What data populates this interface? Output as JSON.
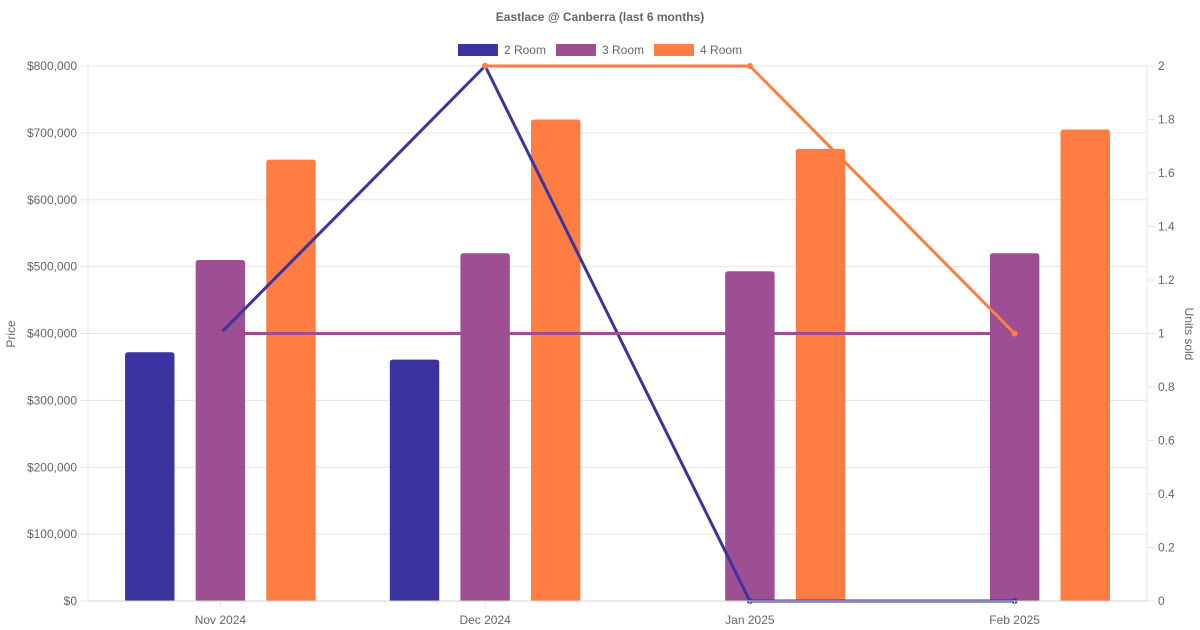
{
  "chart_data": {
    "type": "bar",
    "title": "Eastlace @ Canberra (last 6 months)",
    "categories": [
      "Nov 2024",
      "Dec 2024",
      "Jan 2025",
      "Feb 2025"
    ],
    "y_left": {
      "label": "Price",
      "min": 0,
      "max": 800000,
      "step": 100000,
      "tick_labels": [
        "$0",
        "$100,000",
        "$200,000",
        "$300,000",
        "$400,000",
        "$500,000",
        "$600,000",
        "$700,000",
        "$800,000"
      ]
    },
    "y_right": {
      "label": "Units sold",
      "min": 0,
      "max": 2,
      "step": 0.2,
      "tick_labels": [
        "0",
        "0.2",
        "0.4",
        "0.6",
        "0.8",
        "1",
        "1.2",
        "1.4",
        "1.6",
        "1.8",
        "2"
      ]
    },
    "legend_position": "top",
    "grid": true,
    "bar_series": [
      {
        "name": "2 Room",
        "color": "#3a34a0",
        "values": [
          372000,
          361000,
          null,
          null
        ]
      },
      {
        "name": "3 Room",
        "color": "#9e4f94",
        "values": [
          510000,
          520000,
          493000,
          520000
        ]
      },
      {
        "name": "4 Room",
        "color": "#ff7d42",
        "values": [
          660000,
          720000,
          676000,
          705000
        ]
      }
    ],
    "line_series": [
      {
        "name": "2 Room",
        "color": "#3a34a0",
        "values": [
          1,
          2,
          0,
          0
        ]
      },
      {
        "name": "3 Room",
        "color": "#9e4f94",
        "values": [
          1,
          1,
          1,
          1
        ]
      },
      {
        "name": "4 Room",
        "color": "#ff7d42",
        "values": [
          null,
          2,
          2,
          1
        ]
      }
    ]
  }
}
